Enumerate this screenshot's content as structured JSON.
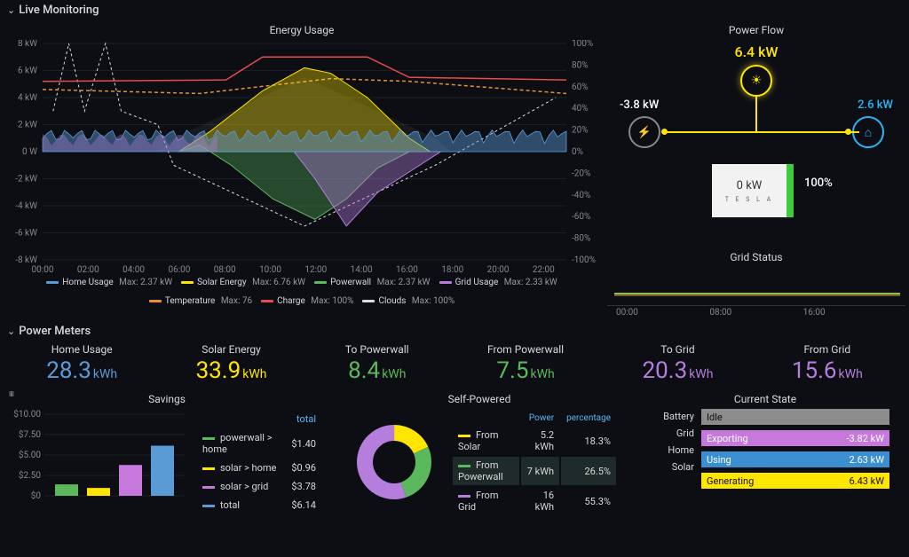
{
  "colors": {
    "bg": "#0c0e14",
    "text": "#d8d9da",
    "muted": "#888888",
    "grid": "#2c3235",
    "home": "#5b9bd5",
    "solar": "#ffe600",
    "powerwall": "#5cb85c",
    "gridusage": "#b57edc",
    "temperature": "#e69138",
    "charge": "#e84c4c",
    "clouds": "#dddddd",
    "cyan_home": "#29b6f6",
    "grid_gray": "#bfbfbf",
    "tesla_green": "#3fc93f",
    "magenta": "#c678dd"
  },
  "sections": {
    "live": "Live Monitoring",
    "meters": "Power Meters"
  },
  "energy_usage": {
    "title": "Energy Usage",
    "y_left": {
      "min": -8,
      "max": 8,
      "step": 2,
      "unit": "kW",
      "ticks": [
        "8 kW",
        "6 kW",
        "4 kW",
        "2 kW",
        "0 W",
        "-2 kW",
        "-4 kW",
        "-6 kW",
        "-8 kW"
      ]
    },
    "y_right": {
      "min": -100,
      "max": 100,
      "step": 20,
      "unit": "%",
      "ticks": [
        "100%",
        "80%",
        "60%",
        "40%",
        "20%",
        "0%",
        "-20%",
        "-40%",
        "-60%",
        "-80%",
        "-100%"
      ]
    },
    "x_ticks": [
      "00:00",
      "02:00",
      "04:00",
      "06:00",
      "08:00",
      "10:00",
      "12:00",
      "14:00",
      "16:00",
      "18:00",
      "20:00",
      "22:00"
    ],
    "legend": [
      {
        "label": "Home Usage",
        "max": "Max: 2.37 kW",
        "color": "#5b9bd5"
      },
      {
        "label": "Solar Energy",
        "max": "Max: 6.76 kW",
        "color": "#ffe600"
      },
      {
        "label": "Powerwall",
        "max": "Max: 2.37 kW",
        "color": "#5cb85c"
      },
      {
        "label": "Grid Usage",
        "max": "Max: 2.33 kW",
        "color": "#b57edc"
      },
      {
        "label": "Temperature",
        "max": "Max: 76",
        "color": "#e69138"
      },
      {
        "label": "Charge",
        "max": "Max: 100%",
        "color": "#e84c4c"
      },
      {
        "label": "Clouds",
        "max": "Max: 100%",
        "color": "#dddddd"
      }
    ]
  },
  "power_flow": {
    "title": "Power Flow",
    "solar": {
      "value": "6.4 kW",
      "color": "#ffe600"
    },
    "grid": {
      "value": "-3.8 kW",
      "color": "#ffffff"
    },
    "home": {
      "value": "2.6 kW",
      "color": "#29b6f6"
    },
    "battery": {
      "value": "0 kW",
      "percent": "100%",
      "brand": "T E S L A"
    }
  },
  "grid_status": {
    "title": "Grid Status",
    "x_ticks": [
      "00:00",
      "08:00",
      "16:00"
    ]
  },
  "meters": [
    {
      "title": "Home Usage",
      "value": "28.3",
      "unit": "kWh",
      "color": "#5b9bd5"
    },
    {
      "title": "Solar Energy",
      "value": "33.9",
      "unit": "kWh",
      "color": "#ffe600"
    },
    {
      "title": "To Powerwall",
      "value": "8.4",
      "unit": "kWh",
      "color": "#5cb85c"
    },
    {
      "title": "From Powerwall",
      "value": "7.5",
      "unit": "kWh",
      "color": "#5cb85c"
    },
    {
      "title": "To Grid",
      "value": "20.3",
      "unit": "kWh",
      "color": "#b57edc"
    },
    {
      "title": "From Grid",
      "value": "15.6",
      "unit": "kWh",
      "color": "#b57edc"
    }
  ],
  "savings": {
    "title": "Savings",
    "y_ticks": [
      "$10.00",
      "$7.50",
      "$5.00",
      "$2.50",
      "$0"
    ],
    "header_right": "total",
    "bars": [
      {
        "color": "#5cb85c",
        "value": 1.4
      },
      {
        "color": "#ffe600",
        "value": 0.96
      },
      {
        "color": "#c678dd",
        "value": 3.78
      },
      {
        "color": "#5b9bd5",
        "value": 6.14
      }
    ],
    "rows": [
      {
        "label": "powerwall > home",
        "value": "$1.40",
        "color": "#5cb85c"
      },
      {
        "label": "solar > home",
        "value": "$0.96",
        "color": "#ffe600"
      },
      {
        "label": "solar > grid",
        "value": "$3.78",
        "color": "#c678dd"
      },
      {
        "label": "total",
        "value": "$6.14",
        "color": "#5b9bd5"
      }
    ],
    "y_max": 10
  },
  "self_powered": {
    "title": "Self-Powered",
    "headers": [
      "",
      "Power",
      "percentage"
    ],
    "slices": [
      {
        "label": "From Solar",
        "power": "5.2 kWh",
        "pct": "18.3%",
        "color": "#ffe600",
        "frac": 0.183
      },
      {
        "label": "From Powerwall",
        "power": "7 kWh",
        "pct": "26.5%",
        "color": "#5cb85c",
        "frac": 0.265,
        "hl": true
      },
      {
        "label": "From Grid",
        "power": "16 kWh",
        "pct": "55.3%",
        "color": "#b57edc",
        "frac": 0.553
      }
    ]
  },
  "current_state": {
    "title": "Current State",
    "rows": [
      {
        "label": "Battery",
        "status": "Idle",
        "value": "",
        "color": "#8c8c8c"
      },
      {
        "label": "Grid",
        "status": "Exporting",
        "value": "-3.82 kW",
        "color": "#c678dd"
      },
      {
        "label": "Home",
        "status": "Using",
        "value": "2.63 kW",
        "color": "#3b8fd1"
      },
      {
        "label": "Solar",
        "status": "Generating",
        "value": "6.43 kW",
        "color": "#ffe600"
      }
    ]
  }
}
